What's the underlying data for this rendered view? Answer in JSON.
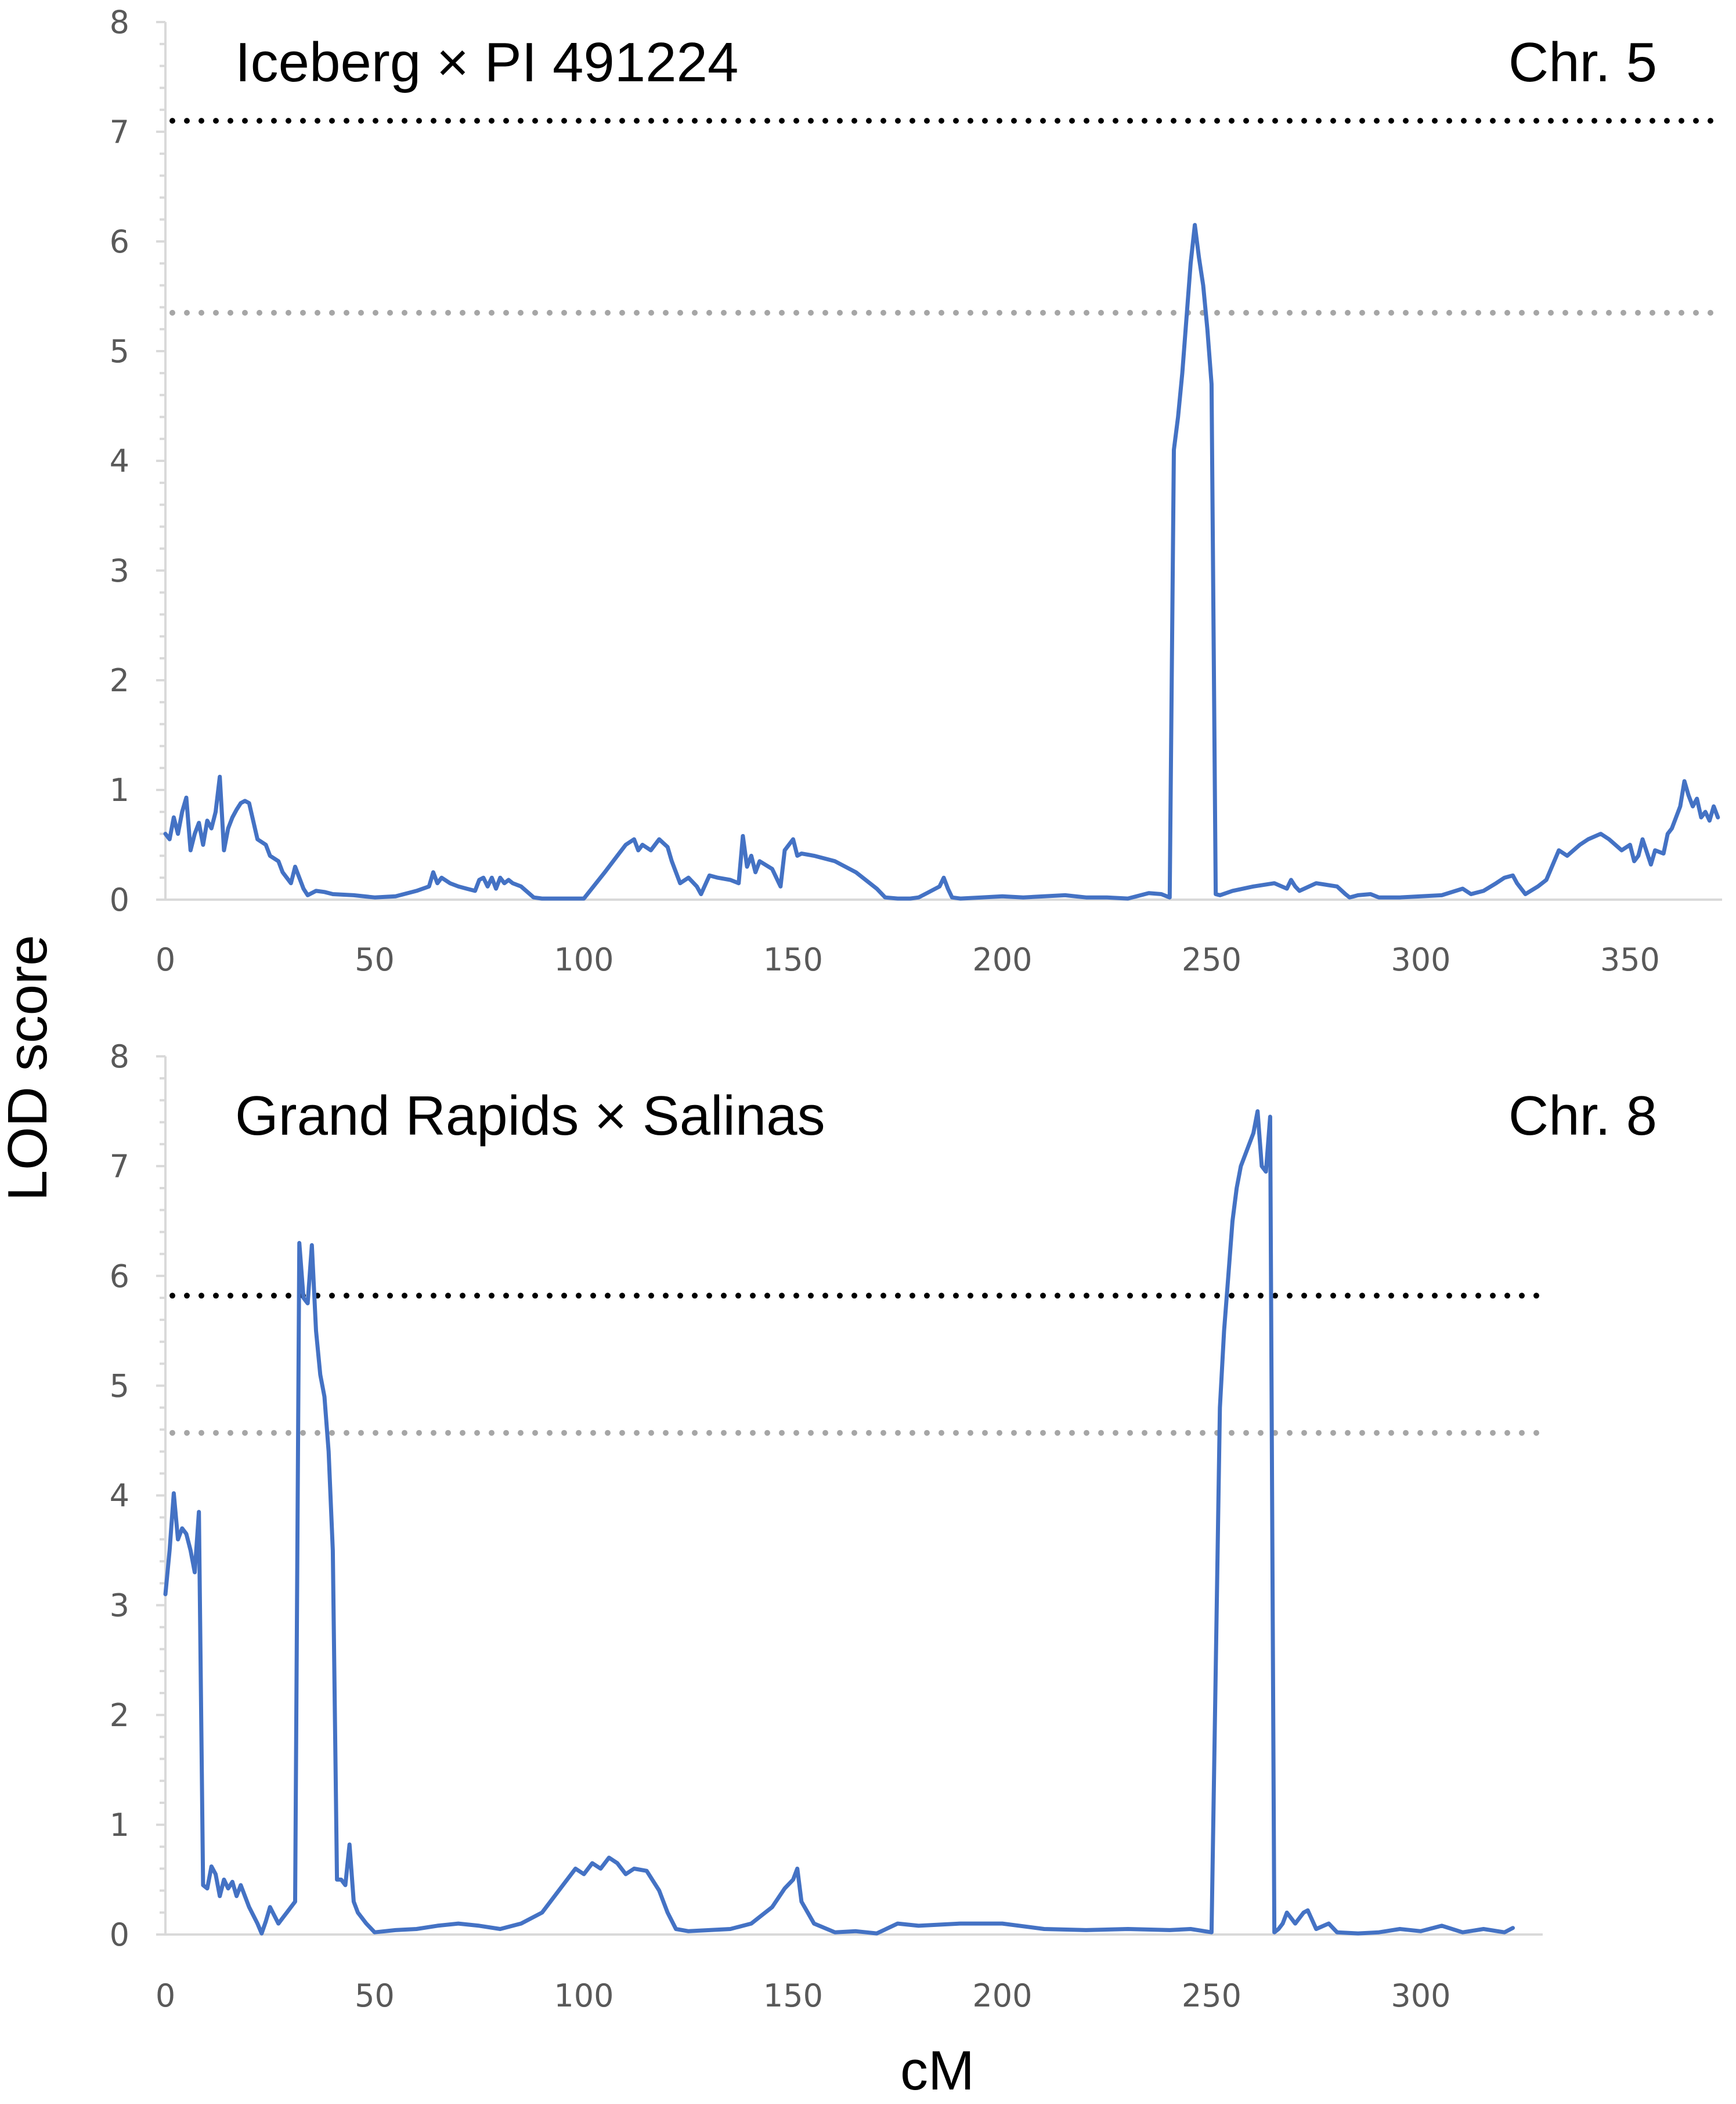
{
  "figure": {
    "xlabel": "cM",
    "ylabel": "LOD score"
  },
  "colors": {
    "lod_line": "#4472C4",
    "threshold_high": "#000000",
    "threshold_low": "#A6A6A6",
    "axis": "#D9D9D9",
    "tick_text": "#595959"
  },
  "chart_data": [
    {
      "type": "line",
      "title": "Iceberg × PI 491224",
      "chromosome": "Chr. 5",
      "xlim": [
        0,
        372
      ],
      "ylim": [
        0,
        8
      ],
      "xticks": [
        0,
        50,
        100,
        150,
        200,
        250,
        300,
        350
      ],
      "yticks": [
        0,
        1,
        2,
        3,
        4,
        5,
        6,
        7,
        8
      ],
      "thresholds": [
        {
          "value": 7.1,
          "color": "#000000"
        },
        {
          "value": 5.35,
          "color": "#A6A6A6"
        }
      ],
      "series": [
        {
          "x": [
            0,
            1,
            2,
            3,
            4,
            5,
            6,
            7,
            8,
            9,
            10,
            11,
            12,
            13,
            14,
            15,
            16,
            17,
            18,
            19,
            20,
            22,
            24,
            25,
            27,
            28,
            29,
            30,
            31,
            32,
            33,
            34,
            36,
            38,
            40,
            45,
            50,
            55,
            60,
            63,
            64,
            65,
            66,
            68,
            70,
            72,
            74,
            75,
            76,
            77,
            78,
            79,
            80,
            81,
            82,
            83,
            85,
            88,
            90,
            95,
            100,
            105,
            108,
            110,
            112,
            113,
            114,
            116,
            118,
            120,
            121,
            122,
            123,
            125,
            127,
            128,
            130,
            132,
            135,
            137,
            138,
            139,
            140,
            141,
            142,
            145,
            147,
            148,
            149,
            150,
            151,
            152,
            155,
            160,
            165,
            170,
            172,
            175,
            178,
            180,
            182,
            185,
            186,
            187,
            188,
            190,
            195,
            200,
            205,
            210,
            215,
            220,
            225,
            230,
            235,
            238,
            240,
            241,
            242,
            243,
            244,
            245,
            246,
            247,
            248,
            249,
            250,
            251,
            252,
            255,
            260,
            265,
            268,
            269,
            270,
            271,
            275,
            280,
            282,
            283,
            285,
            288,
            290,
            295,
            300,
            305,
            310,
            312,
            315,
            318,
            320,
            322,
            323,
            325,
            328,
            330,
            333,
            335,
            338,
            340,
            343,
            345,
            348,
            350,
            351,
            352,
            353,
            355,
            356,
            358,
            359,
            360,
            361,
            362,
            363,
            364,
            365,
            366,
            367,
            368,
            369,
            370,
            371
          ],
          "values": [
            0.6,
            0.55,
            0.75,
            0.6,
            0.8,
            0.93,
            0.45,
            0.6,
            0.7,
            0.5,
            0.72,
            0.65,
            0.8,
            1.12,
            0.45,
            0.65,
            0.75,
            0.82,
            0.88,
            0.9,
            0.88,
            0.55,
            0.5,
            0.4,
            0.35,
            0.25,
            0.2,
            0.15,
            0.3,
            0.2,
            0.1,
            0.04,
            0.08,
            0.07,
            0.05,
            0.04,
            0.02,
            0.03,
            0.08,
            0.12,
            0.25,
            0.15,
            0.2,
            0.15,
            0.12,
            0.1,
            0.08,
            0.18,
            0.2,
            0.12,
            0.2,
            0.1,
            0.2,
            0.15,
            0.18,
            0.15,
            0.12,
            0.02,
            0.01,
            0.01,
            0.01,
            0.25,
            0.4,
            0.5,
            0.55,
            0.45,
            0.5,
            0.45,
            0.55,
            0.48,
            0.35,
            0.25,
            0.15,
            0.2,
            0.12,
            0.05,
            0.22,
            0.2,
            0.18,
            0.15,
            0.58,
            0.3,
            0.4,
            0.25,
            0.35,
            0.28,
            0.12,
            0.45,
            0.5,
            0.55,
            0.4,
            0.42,
            0.4,
            0.35,
            0.25,
            0.1,
            0.02,
            0.01,
            0.01,
            0.02,
            0.06,
            0.12,
            0.2,
            0.1,
            0.02,
            0.01,
            0.02,
            0.03,
            0.02,
            0.03,
            0.04,
            0.02,
            0.02,
            0.01,
            0.06,
            0.05,
            0.02,
            4.1,
            4.4,
            4.8,
            5.3,
            5.8,
            6.15,
            5.85,
            5.6,
            5.2,
            4.7,
            0.05,
            0.04,
            0.08,
            0.12,
            0.15,
            0.1,
            0.18,
            0.12,
            0.08,
            0.15,
            0.12,
            0.05,
            0.02,
            0.04,
            0.05,
            0.02,
            0.02,
            0.03,
            0.04,
            0.1,
            0.05,
            0.08,
            0.15,
            0.2,
            0.22,
            0.15,
            0.05,
            0.12,
            0.18,
            0.45,
            0.4,
            0.5,
            0.55,
            0.6,
            0.55,
            0.45,
            0.5,
            0.35,
            0.4,
            0.55,
            0.32,
            0.45,
            0.42,
            0.6,
            0.65,
            0.75,
            0.85,
            1.08,
            0.95,
            0.85,
            0.92,
            0.75,
            0.8,
            0.72,
            0.85,
            0.75
          ]
        }
      ]
    },
    {
      "type": "line",
      "title": "Grand Rapids × Salinas",
      "chromosome": "Chr. 8",
      "xlim": [
        0,
        372
      ],
      "ylim": [
        0,
        8
      ],
      "xticks": [
        0,
        50,
        100,
        150,
        200,
        250,
        300
      ],
      "yticks": [
        0,
        1,
        2,
        3,
        4,
        5,
        6,
        7,
        8
      ],
      "thresholds": [
        {
          "value": 5.82,
          "color": "#000000"
        },
        {
          "value": 4.57,
          "color": "#A6A6A6"
        }
      ],
      "series": [
        {
          "x": [
            0,
            1,
            2,
            3,
            4,
            5,
            6,
            7,
            8,
            9,
            10,
            11,
            12,
            13,
            14,
            15,
            16,
            17,
            18,
            20,
            22,
            23,
            24,
            25,
            27,
            28,
            29,
            30,
            31,
            32,
            33,
            34,
            35,
            36,
            37,
            38,
            39,
            40,
            41,
            42,
            43,
            44,
            45,
            46,
            48,
            50,
            55,
            60,
            65,
            70,
            75,
            80,
            85,
            90,
            95,
            98,
            100,
            102,
            104,
            106,
            108,
            110,
            112,
            115,
            118,
            120,
            122,
            125,
            130,
            135,
            140,
            145,
            148,
            150,
            151,
            152,
            155,
            160,
            165,
            170,
            175,
            180,
            190,
            200,
            210,
            220,
            230,
            240,
            245,
            250,
            252,
            253,
            254,
            255,
            256,
            257,
            258,
            259,
            260,
            261,
            262,
            263,
            264,
            265,
            266,
            267,
            268,
            270,
            272,
            273,
            275,
            278,
            280,
            285,
            290,
            295,
            300,
            305,
            310,
            315,
            320,
            322
          ],
          "values": [
            3.1,
            3.5,
            4.02,
            3.6,
            3.7,
            3.65,
            3.5,
            3.3,
            3.85,
            0.45,
            0.42,
            0.62,
            0.55,
            0.35,
            0.5,
            0.42,
            0.48,
            0.35,
            0.45,
            0.25,
            0.1,
            0.01,
            0.12,
            0.25,
            0.1,
            0.15,
            0.2,
            0.25,
            0.3,
            6.3,
            5.8,
            5.75,
            6.28,
            5.5,
            5.1,
            4.9,
            4.4,
            3.5,
            0.5,
            0.5,
            0.45,
            0.82,
            0.3,
            0.2,
            0.1,
            0.02,
            0.04,
            0.05,
            0.08,
            0.1,
            0.08,
            0.05,
            0.1,
            0.2,
            0.45,
            0.6,
            0.55,
            0.65,
            0.6,
            0.7,
            0.65,
            0.55,
            0.6,
            0.58,
            0.4,
            0.2,
            0.05,
            0.03,
            0.04,
            0.05,
            0.1,
            0.25,
            0.42,
            0.5,
            0.6,
            0.3,
            0.1,
            0.02,
            0.03,
            0.01,
            0.1,
            0.08,
            0.1,
            0.1,
            0.05,
            0.04,
            0.05,
            0.04,
            0.05,
            0.02,
            4.8,
            5.5,
            6.0,
            6.5,
            6.8,
            7.0,
            7.1,
            7.2,
            7.3,
            7.5,
            7.0,
            6.95,
            7.45,
            0.02,
            0.05,
            0.1,
            0.2,
            0.1,
            0.2,
            0.22,
            0.05,
            0.1,
            0.02,
            0.01,
            0.02,
            0.05,
            0.03,
            0.08,
            0.02,
            0.05,
            0.02,
            0.06
          ]
        }
      ]
    }
  ]
}
